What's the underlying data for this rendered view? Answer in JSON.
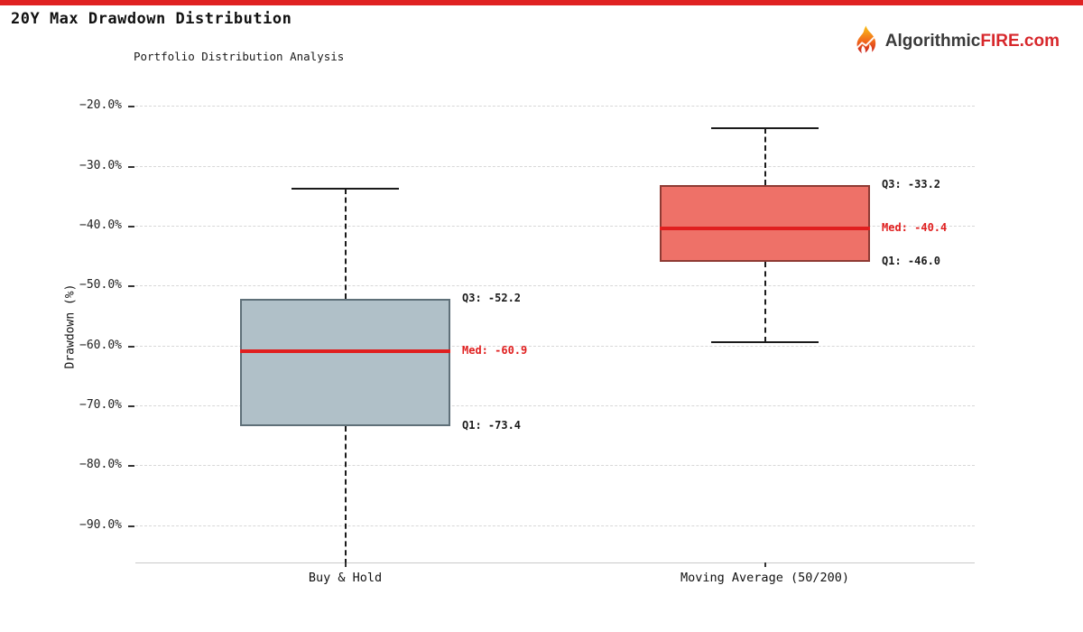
{
  "header": {
    "title": "20Y Max Drawdown Distribution",
    "brand": {
      "part1": "Algorithmic",
      "part2": "FIRE",
      "part3": ".com"
    }
  },
  "chart_data": {
    "type": "boxplot",
    "title": "20Y Max Drawdown Distribution",
    "subtitle": "Portfolio Distribution Analysis",
    "ylabel": "Drawdown (%)",
    "ylim": [
      -96.2,
      -17.4
    ],
    "yticks": [
      {
        "v": -20,
        "label": "−20.0%"
      },
      {
        "v": -30,
        "label": "−30.0%"
      },
      {
        "v": -40,
        "label": "−40.0%"
      },
      {
        "v": -50,
        "label": "−50.0%"
      },
      {
        "v": -60,
        "label": "−60.0%"
      },
      {
        "v": -70,
        "label": "−70.0%"
      },
      {
        "v": -80,
        "label": "−80.0%"
      },
      {
        "v": -90,
        "label": "−90.0%"
      }
    ],
    "grid": "horizontal-dashed",
    "legend": "none",
    "categories": [
      "Buy & Hold",
      "Moving Average (50/200)"
    ],
    "series": [
      {
        "name": "Buy & Hold",
        "whisker_high": -33.8,
        "q3": -52.2,
        "median": -60.9,
        "q1": -73.4,
        "whisker_low": -96.5,
        "whisker_low_cap_visible": false,
        "labels": {
          "q3": "Q3: -52.2",
          "median": "Med: -60.9",
          "q1": "Q1: -73.4"
        },
        "box_fill": "#b0c0c8",
        "box_border": "#5f7079"
      },
      {
        "name": "Moving Average (50/200)",
        "whisker_high": -23.8,
        "q3": -33.2,
        "median": -40.4,
        "q1": -46.0,
        "whisker_low": -59.4,
        "whisker_low_cap_visible": true,
        "labels": {
          "q3": "Q3: -33.2",
          "median": "Med: -40.4",
          "q1": "Q1: -46.0"
        },
        "box_fill": "#ee7168",
        "box_border": "#8e3b34"
      }
    ],
    "colors": {
      "median_line": "#e01f1f",
      "median_label": "#e01f1f",
      "accent_bar": "#e02222",
      "whisker": "#1a1a1a",
      "grid": "#d8d8d8",
      "axis_line": "#c9c9c9"
    }
  }
}
